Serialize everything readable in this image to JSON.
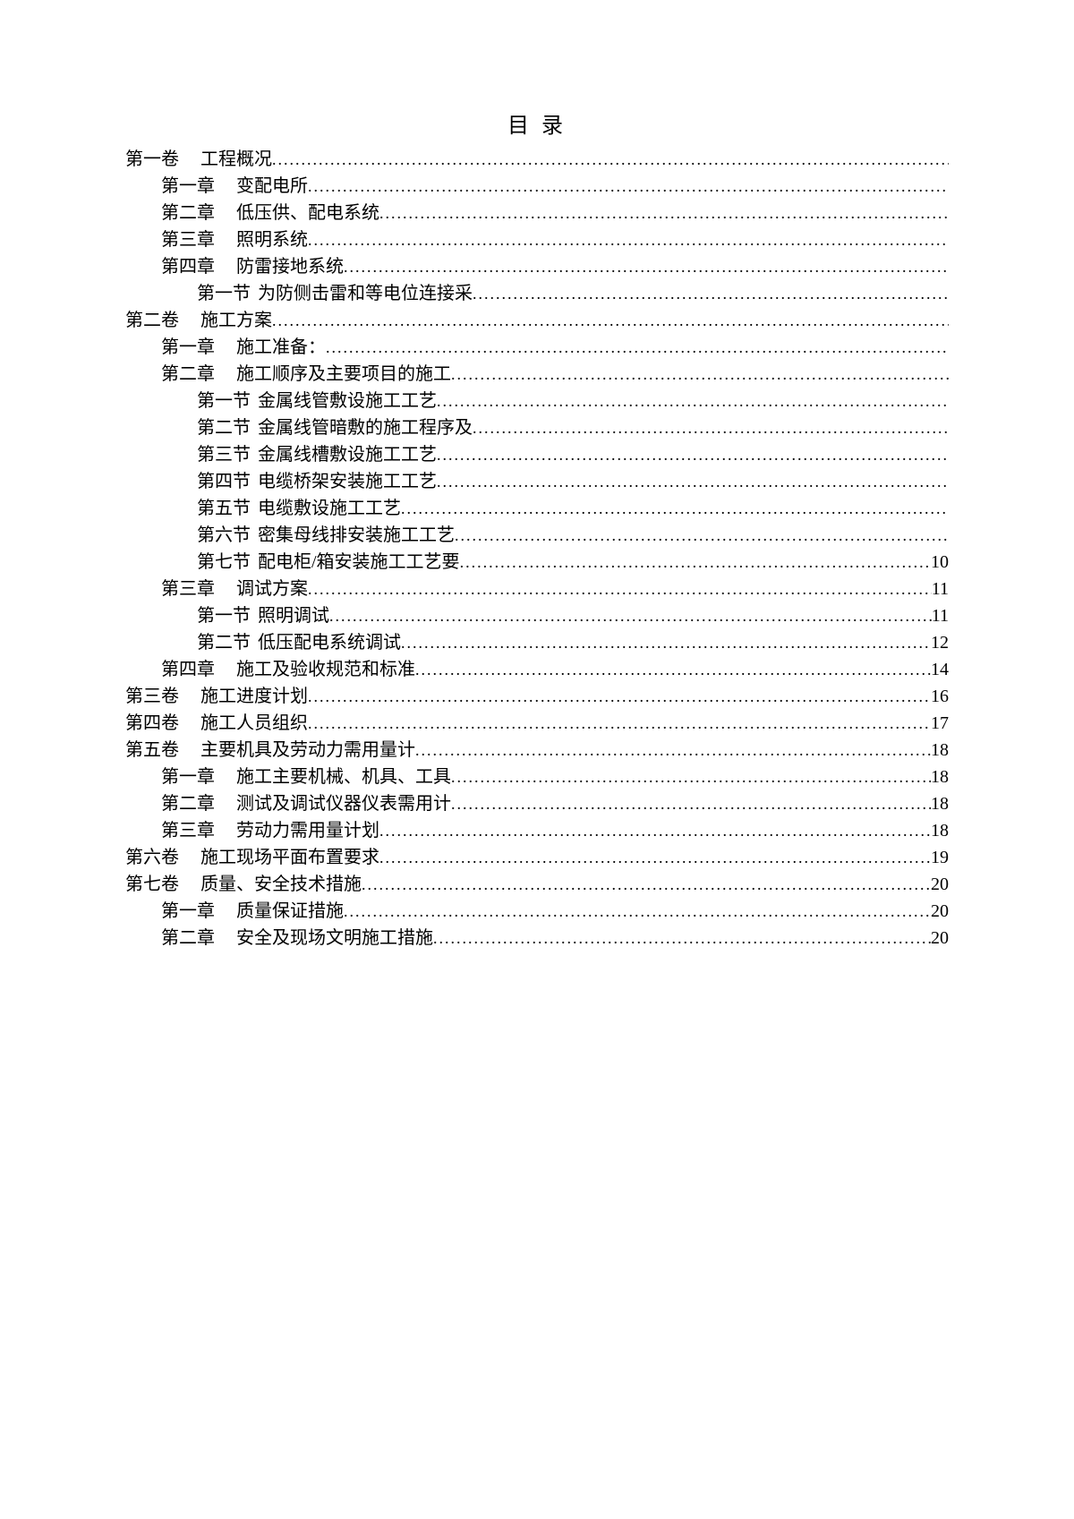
{
  "title": "目 录",
  "entries": [
    {
      "indent": 0,
      "label": "第一卷",
      "title": "工程概况",
      "page": "",
      "spacing": "wide"
    },
    {
      "indent": 1,
      "label": "第一章",
      "title": "变配电所",
      "page": "",
      "spacing": "wide"
    },
    {
      "indent": 1,
      "label": "第二章",
      "title": "低压供、配电系统",
      "page": "",
      "spacing": "wide"
    },
    {
      "indent": 1,
      "label": "第三章",
      "title": "照明系统",
      "page": "",
      "spacing": "wide"
    },
    {
      "indent": 1,
      "label": "第四章",
      "title": "防雷接地系统",
      "page": "",
      "spacing": "wide"
    },
    {
      "indent": 2,
      "label": "第一节",
      "title": "为防侧击雷和等电位连接采",
      "page": "",
      "spacing": "narrow"
    },
    {
      "indent": 0,
      "label": "第二卷",
      "title": "施工方案",
      "page": "",
      "spacing": "wide"
    },
    {
      "indent": 1,
      "label": "第一章",
      "title": "施工准备：",
      "page": "",
      "spacing": "wide"
    },
    {
      "indent": 1,
      "label": "第二章",
      "title": "施工顺序及主要项目的施工",
      "page": "",
      "spacing": "wide"
    },
    {
      "indent": 2,
      "label": "第一节",
      "title": "金属线管敷设施工工艺",
      "page": "",
      "spacing": "narrow"
    },
    {
      "indent": 2,
      "label": "第二节",
      "title": "金属线管暗敷的施工程序及",
      "page": "",
      "spacing": "narrow"
    },
    {
      "indent": 2,
      "label": "第三节",
      "title": "金属线槽敷设施工工艺",
      "page": "",
      "spacing": "narrow"
    },
    {
      "indent": 2,
      "label": "第四节",
      "title": "电缆桥架安装施工工艺",
      "page": "",
      "spacing": "narrow"
    },
    {
      "indent": 2,
      "label": "第五节",
      "title": "电缆敷设施工工艺",
      "page": "",
      "spacing": "narrow"
    },
    {
      "indent": 2,
      "label": "第六节",
      "title": "密集母线排安装施工工艺",
      "page": "",
      "spacing": "narrow"
    },
    {
      "indent": 2,
      "label": "第七节",
      "title": "配电柜/箱安装施工工艺要",
      "page": "10",
      "spacing": "narrow"
    },
    {
      "indent": 1,
      "label": "第三章",
      "title": "调试方案",
      "page": "11",
      "spacing": "wide"
    },
    {
      "indent": 2,
      "label": "第一节",
      "title": "照明调试",
      "page": "11",
      "spacing": "narrow"
    },
    {
      "indent": 2,
      "label": "第二节",
      "title": "低压配电系统调试",
      "page": "12",
      "spacing": "narrow"
    },
    {
      "indent": 1,
      "label": "第四章",
      "title": "施工及验收规范和标准",
      "page": "14",
      "spacing": "wide"
    },
    {
      "indent": 0,
      "label": "第三卷",
      "title": "施工进度计划",
      "page": "16",
      "spacing": "wide"
    },
    {
      "indent": 0,
      "label": "第四卷",
      "title": "施工人员组织",
      "page": "17",
      "spacing": "wide"
    },
    {
      "indent": 0,
      "label": "第五卷",
      "title": "主要机具及劳动力需用量计",
      "page": "18",
      "spacing": "wide"
    },
    {
      "indent": 1,
      "label": "第一章",
      "title": "施工主要机械、机具、工具",
      "page": "18",
      "spacing": "wide"
    },
    {
      "indent": 1,
      "label": "第二章",
      "title": "测试及调试仪器仪表需用计",
      "page": "18",
      "spacing": "wide"
    },
    {
      "indent": 1,
      "label": "第三章",
      "title": "劳动力需用量计划",
      "page": "18",
      "spacing": "wide"
    },
    {
      "indent": 0,
      "label": "第六卷",
      "title": "施工现场平面布置要求",
      "page": "19",
      "spacing": "wide"
    },
    {
      "indent": 0,
      "label": "第七卷",
      "title": "质量、安全技术措施",
      "page": "20",
      "spacing": "wide"
    },
    {
      "indent": 1,
      "label": "第一章",
      "title": "质量保证措施",
      "page": "20",
      "spacing": "wide"
    },
    {
      "indent": 1,
      "label": "第二章",
      "title": "安全及现场文明施工措施",
      "page": "20",
      "spacing": "wide"
    }
  ],
  "colors": {
    "background": "#ffffff",
    "text": "#000000"
  },
  "typography": {
    "body_fontsize": 20,
    "title_fontsize": 24,
    "line_height": 1.5
  }
}
